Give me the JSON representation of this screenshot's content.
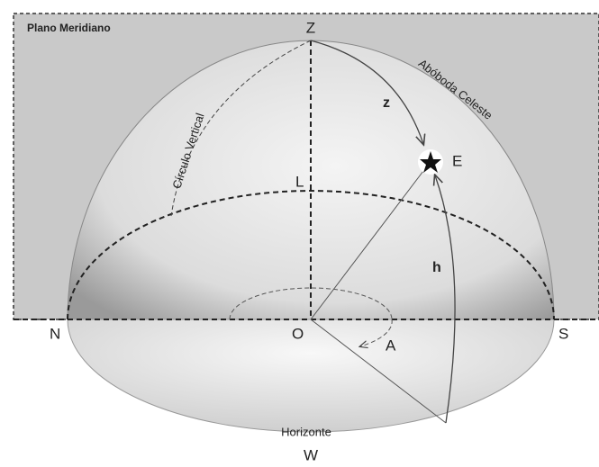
{
  "labels": {
    "plane": "Plano Meridiano",
    "zenith": "Z",
    "vault": "Abóboda Celeste",
    "vertical_circle": "Círculo Vertical",
    "zenith_distance": "z",
    "star": "E",
    "upper_point": "L",
    "altitude": "h",
    "north": "N",
    "origin": "O",
    "south": "S",
    "azimuth": "A",
    "horizon": "Horizonte",
    "west": "W"
  }
}
